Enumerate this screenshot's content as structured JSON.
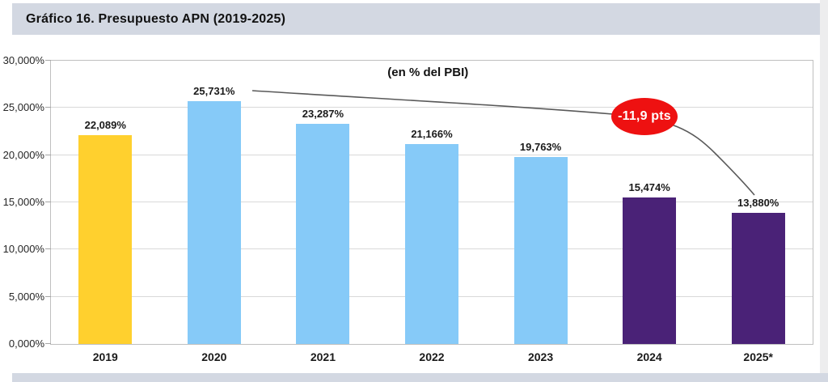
{
  "page": {
    "title": "Gráfico 16. Presupuesto APN (2019-2025)"
  },
  "chart_data": {
    "type": "bar",
    "title": "Gráfico 16. Presupuesto APN (2019-2025)",
    "subtitle": "(en % del PBI)",
    "categories": [
      "2019",
      "2020",
      "2021",
      "2022",
      "2023",
      "2024",
      "2025*"
    ],
    "values": [
      22.089,
      25.731,
      23.287,
      21.166,
      19.763,
      15.474,
      13.88
    ],
    "value_labels": [
      "22,089%",
      "25,731%",
      "23,287%",
      "21,166%",
      "19,763%",
      "15,474%",
      "13,880%"
    ],
    "bar_colors": [
      "#ffd02e",
      "#86caf8",
      "#86caf8",
      "#86caf8",
      "#86caf8",
      "#4a2277",
      "#4a2277"
    ],
    "ylim": [
      0,
      30
    ],
    "ytick_values": [
      0,
      5,
      10,
      15,
      20,
      25,
      30
    ],
    "ytick_labels": [
      "0,000%",
      "5,000%",
      "10,000%",
      "15,000%",
      "20,000%",
      "25,000%",
      "30,000%"
    ],
    "grid": true,
    "legend": null,
    "annotation": {
      "label": "-11,9 pts",
      "fill_color": "#ee1111",
      "text_color": "#ffffff",
      "curve_color": "#595959"
    }
  }
}
